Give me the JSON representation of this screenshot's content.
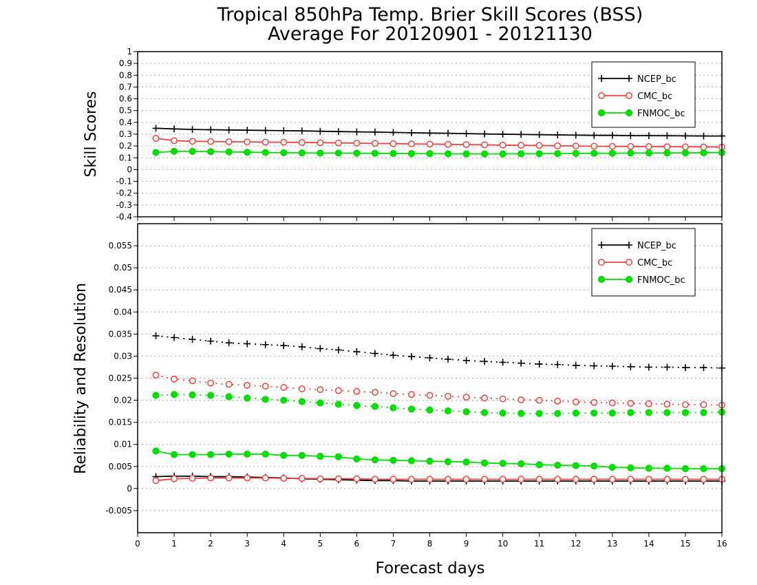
{
  "title_line1": "Tropical 850hPa Temp. Brier Skill Scores (BSS)",
  "title_line2": "Average For 20120901 - 20121130",
  "xlabel": "Forecast days",
  "colors": {
    "NCEP_bc": "#000000",
    "CMC_bc": "#f04040",
    "FNMOC_bc": "#00dd00",
    "grid": "#aaaaaa"
  },
  "chart_data": [
    {
      "type": "line",
      "ylabel": "Skill Scores",
      "xlim": [
        0,
        16
      ],
      "ylim": [
        -0.4,
        1
      ],
      "xticks": [
        "0",
        "1",
        "2",
        "3",
        "4",
        "5",
        "6",
        "7",
        "8",
        "9",
        "10",
        "11",
        "12",
        "13",
        "14",
        "15",
        "16"
      ],
      "yticks": [
        "-0.4",
        "-0.3",
        "-0.2",
        "-0.1",
        "0",
        "0.1",
        "0.2",
        "0.3",
        "0.4",
        "0.5",
        "0.6",
        "0.7",
        "0.8",
        "0.9",
        "1"
      ],
      "legend": [
        "NCEP_bc",
        "CMC_bc",
        "FNMOC_bc"
      ],
      "legend_position": "top-right",
      "grid": true,
      "x": [
        0.5,
        1,
        1.5,
        2,
        2.5,
        3,
        3.5,
        4,
        4.5,
        5,
        5.5,
        6,
        6.5,
        7,
        7.5,
        8,
        8.5,
        9,
        9.5,
        10,
        10.5,
        11,
        11.5,
        12,
        12.5,
        13,
        13.5,
        14,
        14.5,
        15,
        15.5,
        16
      ],
      "series": [
        {
          "name": "NCEP_bc",
          "style": "solid",
          "marker": "plus",
          "values": [
            0.35,
            0.345,
            0.34,
            0.338,
            0.336,
            0.334,
            0.332,
            0.33,
            0.328,
            0.325,
            0.322,
            0.32,
            0.318,
            0.315,
            0.312,
            0.31,
            0.308,
            0.305,
            0.302,
            0.3,
            0.298,
            0.296,
            0.294,
            0.292,
            0.29,
            0.29,
            0.288,
            0.288,
            0.287,
            0.286,
            0.285,
            0.285
          ]
        },
        {
          "name": "CMC_bc",
          "style": "solid",
          "marker": "open-circle",
          "values": [
            0.265,
            0.245,
            0.24,
            0.238,
            0.236,
            0.235,
            0.233,
            0.232,
            0.23,
            0.228,
            0.226,
            0.224,
            0.222,
            0.22,
            0.218,
            0.216,
            0.214,
            0.212,
            0.21,
            0.208,
            0.206,
            0.204,
            0.202,
            0.2,
            0.198,
            0.197,
            0.196,
            0.195,
            0.194,
            0.193,
            0.192,
            0.191
          ]
        },
        {
          "name": "FNMOC_bc",
          "style": "solid",
          "marker": "filled-circle",
          "values": [
            0.145,
            0.155,
            0.155,
            0.152,
            0.15,
            0.147,
            0.145,
            0.143,
            0.142,
            0.14,
            0.14,
            0.139,
            0.138,
            0.137,
            0.136,
            0.135,
            0.134,
            0.133,
            0.133,
            0.133,
            0.134,
            0.135,
            0.136,
            0.137,
            0.138,
            0.139,
            0.14,
            0.141,
            0.142,
            0.142,
            0.143,
            0.144
          ]
        }
      ]
    },
    {
      "type": "line",
      "ylabel": "Reliability and Resolution",
      "xlim": [
        0,
        16
      ],
      "ylim": [
        -0.01,
        0.06
      ],
      "xticks": [
        "0",
        "1",
        "2",
        "3",
        "4",
        "5",
        "6",
        "7",
        "8",
        "9",
        "10",
        "11",
        "12",
        "13",
        "14",
        "15",
        "16"
      ],
      "yticks": [
        "-0.005",
        "0",
        "0.005",
        "0.01",
        "0.015",
        "0.02",
        "0.025",
        "0.03",
        "0.035",
        "0.04",
        "0.045",
        "0.05",
        "0.055"
      ],
      "legend": [
        "NCEP_bc",
        "CMC_bc",
        "FNMOC_bc"
      ],
      "legend_position": "top-right",
      "grid": true,
      "x": [
        0.5,
        1,
        1.5,
        2,
        2.5,
        3,
        3.5,
        4,
        4.5,
        5,
        5.5,
        6,
        6.5,
        7,
        7.5,
        8,
        8.5,
        9,
        9.5,
        10,
        10.5,
        11,
        11.5,
        12,
        12.5,
        13,
        13.5,
        14,
        14.5,
        15,
        15.5,
        16
      ],
      "series": [
        {
          "name": "NCEP_bc",
          "style": "dotted",
          "marker": "plus",
          "values": [
            0.0346,
            0.0342,
            0.0338,
            0.0334,
            0.033,
            0.0328,
            0.0326,
            0.0324,
            0.0321,
            0.0317,
            0.0314,
            0.031,
            0.0306,
            0.0302,
            0.0299,
            0.0296,
            0.0293,
            0.029,
            0.0288,
            0.0286,
            0.0284,
            0.0282,
            0.0281,
            0.0279,
            0.0278,
            0.0277,
            0.0276,
            0.0275,
            0.0275,
            0.0274,
            0.0274,
            0.0273
          ]
        },
        {
          "name": "CMC_bc",
          "style": "dotted",
          "marker": "open-circle",
          "values": [
            0.0257,
            0.0248,
            0.0244,
            0.0239,
            0.0236,
            0.0234,
            0.0232,
            0.0229,
            0.0226,
            0.0224,
            0.0222,
            0.022,
            0.0218,
            0.0215,
            0.0213,
            0.0211,
            0.0209,
            0.0207,
            0.0205,
            0.0203,
            0.0201,
            0.02,
            0.0198,
            0.0196,
            0.0195,
            0.0194,
            0.0193,
            0.0192,
            0.0191,
            0.019,
            0.019,
            0.0189
          ]
        },
        {
          "name": "FNMOC_bc",
          "style": "dotted",
          "marker": "filled-circle",
          "values": [
            0.0211,
            0.0213,
            0.0212,
            0.0211,
            0.0208,
            0.0205,
            0.0202,
            0.02,
            0.0197,
            0.0194,
            0.0191,
            0.0188,
            0.0186,
            0.0183,
            0.018,
            0.0178,
            0.0176,
            0.0174,
            0.0172,
            0.0171,
            0.017,
            0.017,
            0.017,
            0.0171,
            0.0171,
            0.0171,
            0.0172,
            0.0172,
            0.0172,
            0.0172,
            0.0172,
            0.0173
          ]
        },
        {
          "name": "NCEP_bc",
          "style": "solid",
          "marker": "plus",
          "values": [
            0.0027,
            0.0028,
            0.0028,
            0.0027,
            0.0027,
            0.0026,
            0.0025,
            0.0024,
            0.0022,
            0.0021,
            0.002,
            0.0019,
            0.0018,
            0.0018,
            0.0017,
            0.0017,
            0.0017,
            0.0017,
            0.0017,
            0.0017,
            0.0017,
            0.0017,
            0.0017,
            0.0017,
            0.0017,
            0.0017,
            0.0017,
            0.0017,
            0.0017,
            0.0017,
            0.0017,
            0.0017
          ]
        },
        {
          "name": "CMC_bc",
          "style": "solid",
          "marker": "open-circle",
          "values": [
            0.0018,
            0.0022,
            0.0023,
            0.0024,
            0.0024,
            0.0024,
            0.0024,
            0.0023,
            0.0023,
            0.0022,
            0.0022,
            0.0022,
            0.0021,
            0.0021,
            0.0021,
            0.0021,
            0.0021,
            0.0021,
            0.0021,
            0.0021,
            0.0021,
            0.0021,
            0.0021,
            0.0021,
            0.0021,
            0.0021,
            0.0021,
            0.0021,
            0.0021,
            0.0021,
            0.0021,
            0.0021
          ]
        },
        {
          "name": "FNMOC_bc",
          "style": "solid",
          "marker": "filled-circle",
          "values": [
            0.0085,
            0.0077,
            0.0077,
            0.0077,
            0.0078,
            0.0078,
            0.0078,
            0.0075,
            0.0075,
            0.0073,
            0.0072,
            0.0067,
            0.0065,
            0.0064,
            0.0063,
            0.0062,
            0.0061,
            0.006,
            0.0058,
            0.0057,
            0.0056,
            0.0054,
            0.0053,
            0.0052,
            0.0051,
            0.0048,
            0.0047,
            0.0046,
            0.0046,
            0.0045,
            0.0045,
            0.0045
          ]
        }
      ]
    }
  ]
}
